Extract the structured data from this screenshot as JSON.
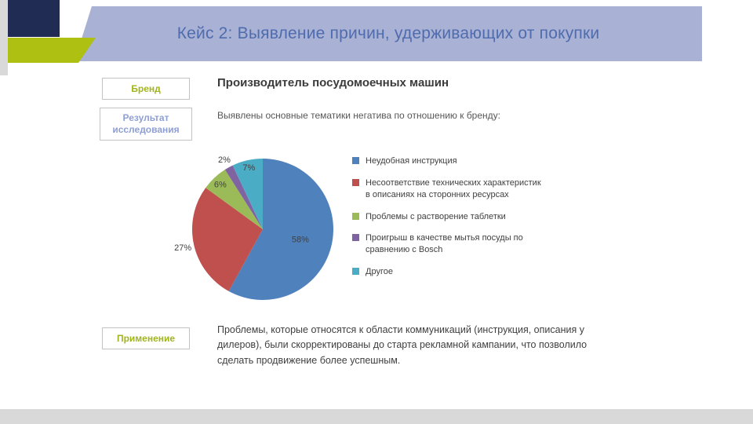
{
  "header": {
    "title": "Кейс 2: Выявление причин, удерживающих от покупки"
  },
  "sidebar_labels": {
    "brand": "Бренд",
    "result": "Результат исследования",
    "application": "Применение"
  },
  "brand_section": {
    "heading": "Производитель посудомоечных машин"
  },
  "result_section": {
    "intro": "Выявлены основные тематики негатива по отношению к бренду:"
  },
  "application_section": {
    "text": "Проблемы, которые относятся к области коммуникаций (инструкция, описания у дилеров), были скорректированы до старта рекламной кампании, что позволило сделать продвижение более успешным."
  },
  "chart_data": {
    "type": "pie",
    "title": "",
    "legend_position": "right",
    "start_angle_deg": 0,
    "direction": "clockwise",
    "slices": [
      {
        "label": "Неудобная инструкция",
        "value": 58,
        "value_label": "58%",
        "color": "#4F81BD"
      },
      {
        "label": "Несоответствие технических характеристик в описаниях на сторонних ресурсах",
        "value": 27,
        "value_label": "27%",
        "color": "#C0504D"
      },
      {
        "label": "Проблемы с растворение таблетки",
        "value": 6,
        "value_label": "6%",
        "color": "#9BBB59"
      },
      {
        "label": "Проигрыш в качестве мытья посуды по сравнению с Bosch",
        "value": 2,
        "value_label": "2%",
        "color": "#8064A2"
      },
      {
        "label": "Другое",
        "value": 7,
        "value_label": "7%",
        "color": "#4BACC6"
      }
    ]
  },
  "colors": {
    "header_band": "#a9b1d4",
    "header_title": "#4e6cae",
    "navy_block": "#202c54",
    "green_accent": "#aec112",
    "sidebar_green_text": "#a2b41c",
    "sidebar_blue_text": "#8e9fd4",
    "body_text": "#3f3f3f",
    "chart_label_text": "#404040",
    "bottom_bar": "#d9d9d9"
  }
}
